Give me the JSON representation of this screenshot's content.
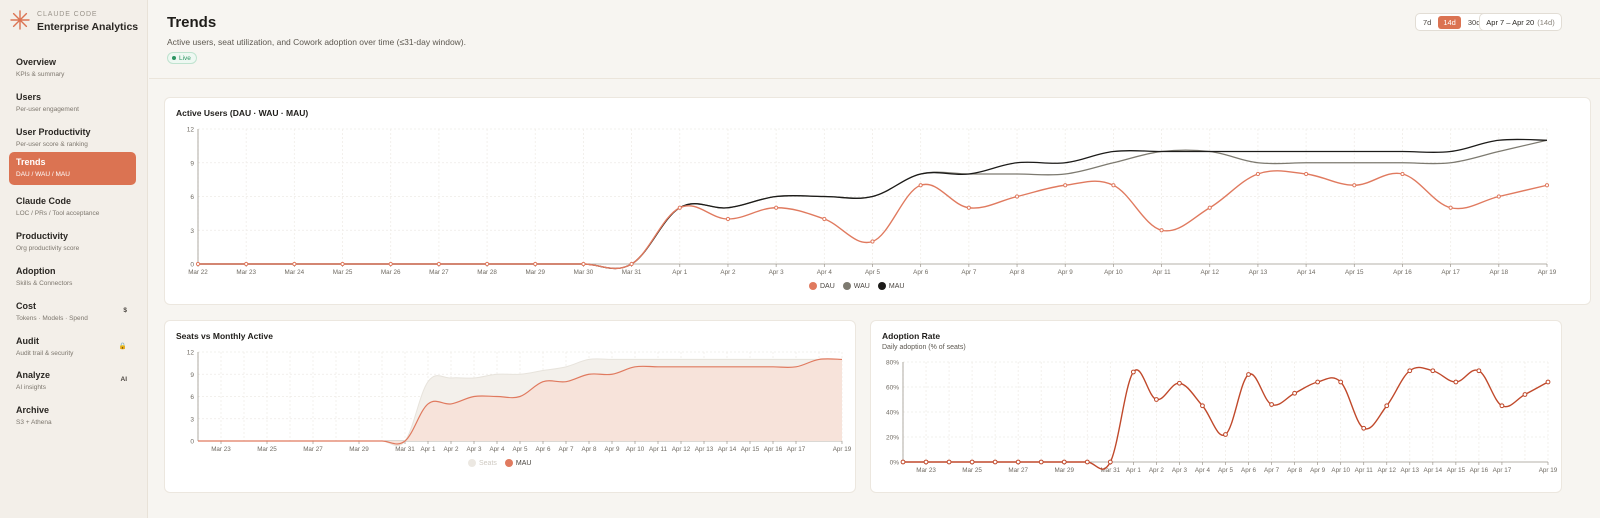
{
  "brand": {
    "small": "CLAUDE CODE",
    "title": "Enterprise Analytics",
    "icon": "claude-star-icon"
  },
  "nav": [
    {
      "label": "Overview",
      "sub": "KPIs & summary",
      "icon": ""
    },
    {
      "label": "Users",
      "sub": "Per-user engagement",
      "icon": ""
    },
    {
      "label": "User Productivity",
      "sub": "Per-user score & ranking",
      "icon": ""
    },
    {
      "label": "Trends",
      "sub": "DAU / WAU / MAU",
      "icon": "",
      "active": true
    },
    {
      "label": "Claude Code",
      "sub": "LOC / PRs / Tool acceptance",
      "icon": ""
    },
    {
      "label": "Productivity",
      "sub": "Org productivity score",
      "icon": ""
    },
    {
      "label": "Adoption",
      "sub": "Skills & Connectors",
      "icon": ""
    },
    {
      "label": "Cost",
      "sub": "Tokens · Models · Spend",
      "icon": "$"
    },
    {
      "label": "Audit",
      "sub": "Audit trail & security",
      "icon": "🔒"
    },
    {
      "label": "Analyze",
      "sub": "AI insights",
      "icon": "AI"
    },
    {
      "label": "Archive",
      "sub": "S3 + Athena",
      "icon": ""
    }
  ],
  "header": {
    "title": "Trends",
    "subtitle": "Active users, seat utilization, and Cowork adoption over time (≤31-day window).",
    "live_label": "Live",
    "range_buttons": [
      "7d",
      "14d",
      "30d",
      "..."
    ],
    "active_range": "14d",
    "date_range": "Apr 7 – Apr 20",
    "date_range_hint": "(14d)"
  },
  "colors": {
    "accent": "#db7352",
    "dau": "#e07a5f",
    "wau": "#7d7a70",
    "mau": "#1c1b19",
    "seats": "#f0ede8",
    "adoption": "#c0492b"
  },
  "chart_data": [
    {
      "type": "line",
      "title": "Active Users (DAU · WAU · MAU)",
      "x": [
        "Mar 22",
        "Mar 23",
        "Mar 24",
        "Mar 25",
        "Mar 26",
        "Mar 27",
        "Mar 28",
        "Mar 29",
        "Mar 30",
        "Mar 31",
        "Apr 1",
        "Apr 2",
        "Apr 3",
        "Apr 4",
        "Apr 5",
        "Apr 6",
        "Apr 7",
        "Apr 8",
        "Apr 9",
        "Apr 10",
        "Apr 11",
        "Apr 12",
        "Apr 13",
        "Apr 14",
        "Apr 15",
        "Apr 16",
        "Apr 17",
        "Apr 18",
        "Apr 19"
      ],
      "yticks": [
        "0",
        "3",
        "6",
        "9",
        "12"
      ],
      "ylim": [
        0,
        12
      ],
      "series": [
        {
          "name": "DAU",
          "values": [
            0,
            0,
            0,
            0,
            0,
            0,
            0,
            0,
            0,
            0,
            5,
            4,
            5,
            4,
            2,
            7,
            5,
            6,
            7,
            7,
            3,
            5,
            8,
            8,
            7,
            8,
            5,
            6,
            7
          ]
        },
        {
          "name": "WAU",
          "values": [
            0,
            0,
            0,
            0,
            0,
            0,
            0,
            0,
            0,
            0,
            5,
            5,
            6,
            6,
            6,
            8,
            8,
            8,
            8,
            9,
            10,
            10,
            9,
            9,
            9,
            9,
            9,
            10,
            11
          ]
        },
        {
          "name": "MAU",
          "values": [
            0,
            0,
            0,
            0,
            0,
            0,
            0,
            0,
            0,
            0,
            5,
            5,
            6,
            6,
            6,
            8,
            8,
            9,
            9,
            10,
            10,
            10,
            10,
            10,
            10,
            10,
            10,
            11,
            11
          ]
        }
      ],
      "grid": true,
      "legend": "bottom-center"
    },
    {
      "type": "area",
      "title": "Seats vs Monthly Active",
      "x": [
        "Mar 22",
        "Mar 23",
        "Mar 24",
        "Mar 25",
        "Mar 26",
        "Mar 27",
        "Mar 28",
        "Mar 29",
        "Mar 30",
        "Mar 31",
        "Apr 1",
        "Apr 2",
        "Apr 3",
        "Apr 4",
        "Apr 5",
        "Apr 6",
        "Apr 7",
        "Apr 8",
        "Apr 9",
        "Apr 10",
        "Apr 11",
        "Apr 12",
        "Apr 13",
        "Apr 14",
        "Apr 15",
        "Apr 16",
        "Apr 17",
        "Apr 18",
        "Apr 19"
      ],
      "xtick_labels": [
        "Mar 23",
        "Mar 25",
        "Mar 27",
        "Mar 29",
        "Mar 31",
        "Apr 1",
        "Apr 2",
        "Apr 3",
        "Apr 4",
        "Apr 5",
        "Apr 6",
        "Apr 7",
        "Apr 8",
        "Apr 9",
        "Apr 10",
        "Apr 11",
        "Apr 12",
        "Apr 13",
        "Apr 14",
        "Apr 15",
        "Apr 16",
        "Apr 17",
        "Apr 19"
      ],
      "yticks": [
        "0",
        "3",
        "6",
        "9",
        "12"
      ],
      "ylim": [
        0,
        12
      ],
      "series": [
        {
          "name": "Seats",
          "values": [
            0,
            0,
            0,
            0,
            0,
            0,
            0,
            0,
            0,
            0,
            8,
            8.5,
            8.5,
            9,
            9,
            9.5,
            10,
            11,
            11,
            11,
            11,
            11,
            11,
            11,
            11,
            11,
            11,
            11,
            11
          ]
        },
        {
          "name": "MAU",
          "values": [
            0,
            0,
            0,
            0,
            0,
            0,
            0,
            0,
            0,
            0,
            5,
            5,
            6,
            6,
            6,
            8,
            8,
            9,
            9,
            10,
            10,
            10,
            10,
            10,
            10,
            10,
            10,
            11,
            11
          ]
        }
      ],
      "legend": "bottom-center",
      "legend_inactive": [
        "Seats"
      ]
    },
    {
      "type": "line",
      "title": "Adoption Rate",
      "subtitle": "Daily adoption (% of seats)",
      "x": [
        "Mar 22",
        "Mar 23",
        "Mar 24",
        "Mar 25",
        "Mar 26",
        "Mar 27",
        "Mar 28",
        "Mar 29",
        "Mar 30",
        "Mar 31",
        "Apr 1",
        "Apr 2",
        "Apr 3",
        "Apr 4",
        "Apr 5",
        "Apr 6",
        "Apr 7",
        "Apr 8",
        "Apr 9",
        "Apr 10",
        "Apr 11",
        "Apr 12",
        "Apr 13",
        "Apr 14",
        "Apr 15",
        "Apr 16",
        "Apr 17",
        "Apr 18",
        "Apr 19"
      ],
      "xtick_labels": [
        "Mar 23",
        "Mar 25",
        "Mar 27",
        "Mar 29",
        "Mar 31",
        "Apr 1",
        "Apr 2",
        "Apr 3",
        "Apr 4",
        "Apr 5",
        "Apr 6",
        "Apr 7",
        "Apr 8",
        "Apr 9",
        "Apr 10",
        "Apr 11",
        "Apr 12",
        "Apr 13",
        "Apr 14",
        "Apr 15",
        "Apr 16",
        "Apr 17",
        "Apr 19"
      ],
      "yticks": [
        "0%",
        "20%",
        "40%",
        "60%",
        "80%"
      ],
      "ylim": [
        0,
        80
      ],
      "series": [
        {
          "name": "Adoption",
          "values": [
            0,
            0,
            0,
            0,
            0,
            0,
            0,
            0,
            0,
            0,
            72,
            50,
            63,
            45,
            22,
            70,
            46,
            55,
            64,
            64,
            27,
            45,
            73,
            73,
            64,
            73,
            45,
            54,
            64
          ]
        }
      ],
      "grid": true
    }
  ]
}
